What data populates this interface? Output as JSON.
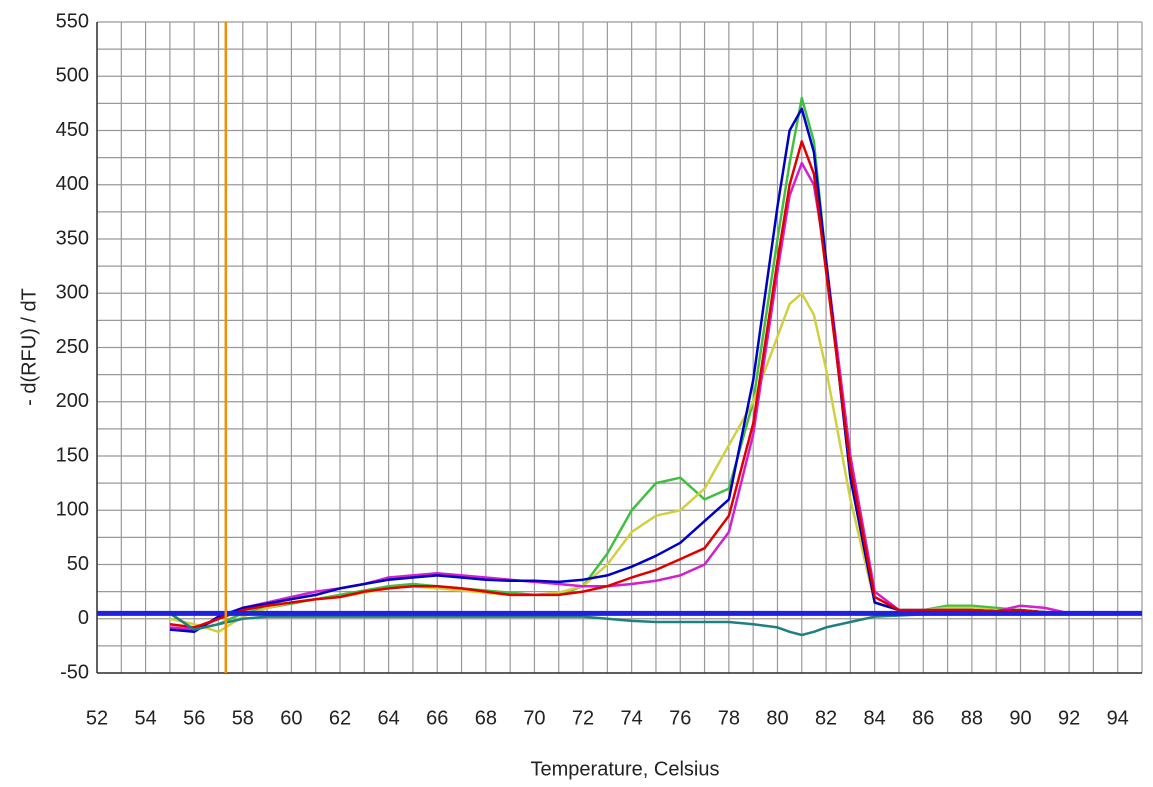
{
  "chart_data": {
    "type": "line",
    "xlabel": "Temperature, Celsius",
    "ylabel": "- d(RFU) / dT",
    "xlim": [
      52,
      95
    ],
    "ylim": [
      -50,
      550
    ],
    "xticks": [
      52,
      54,
      56,
      58,
      60,
      62,
      64,
      66,
      68,
      70,
      72,
      74,
      76,
      78,
      80,
      82,
      84,
      86,
      88,
      90,
      92,
      94
    ],
    "yticks": [
      -50,
      0,
      50,
      100,
      150,
      200,
      250,
      300,
      350,
      400,
      450,
      500,
      550
    ],
    "x_minor_ticks": [
      53,
      55,
      57,
      59,
      61,
      63,
      65,
      67,
      69,
      71,
      73,
      75,
      77,
      79,
      81,
      83,
      85,
      87,
      89,
      91,
      93,
      95
    ],
    "y_minor_ticks": [
      -25,
      25,
      75,
      125,
      175,
      225,
      275,
      325,
      375,
      425,
      475,
      525
    ],
    "grid": true,
    "vline": {
      "x": 57.3,
      "color": "#f0900a"
    },
    "hline": {
      "y": 5,
      "color": "#2020e0"
    },
    "x": [
      55,
      56,
      57,
      58,
      59,
      60,
      61,
      62,
      63,
      64,
      65,
      66,
      67,
      68,
      69,
      70,
      71,
      72,
      73,
      74,
      75,
      76,
      77,
      78,
      79,
      80,
      80.5,
      81,
      81.5,
      82,
      83,
      84,
      85,
      86,
      87,
      88,
      89,
      90,
      91,
      92,
      93,
      94
    ],
    "series": [
      {
        "color": "#40c040",
        "values": [
          5,
          -10,
          -5,
          5,
          10,
          14,
          18,
          22,
          26,
          30,
          32,
          30,
          28,
          26,
          24,
          22,
          22,
          30,
          60,
          100,
          125,
          130,
          110,
          120,
          200,
          350,
          420,
          480,
          440,
          330,
          130,
          15,
          8,
          8,
          12,
          12,
          10,
          8,
          6,
          5,
          5,
          5
        ]
      },
      {
        "color": "#d0d040",
        "values": [
          0,
          -5,
          -12,
          2,
          10,
          15,
          18,
          20,
          24,
          28,
          30,
          28,
          26,
          24,
          22,
          22,
          24,
          30,
          50,
          80,
          95,
          100,
          120,
          160,
          200,
          260,
          290,
          300,
          280,
          230,
          110,
          15,
          8,
          8,
          10,
          10,
          8,
          8,
          6,
          5,
          5,
          5
        ]
      },
      {
        "color": "#d020d0",
        "values": [
          -8,
          -10,
          0,
          10,
          15,
          20,
          25,
          28,
          32,
          38,
          40,
          42,
          40,
          38,
          36,
          34,
          32,
          30,
          30,
          32,
          35,
          40,
          50,
          80,
          170,
          320,
          390,
          420,
          400,
          330,
          150,
          25,
          8,
          8,
          8,
          8,
          7,
          12,
          10,
          5,
          5,
          5
        ]
      },
      {
        "color": "#0000c0",
        "values": [
          -10,
          -12,
          2,
          10,
          14,
          18,
          22,
          28,
          32,
          36,
          38,
          40,
          38,
          36,
          35,
          35,
          34,
          36,
          40,
          48,
          58,
          70,
          90,
          110,
          220,
          380,
          450,
          470,
          430,
          330,
          130,
          15,
          8,
          8,
          8,
          8,
          7,
          8,
          6,
          5,
          5,
          5
        ]
      },
      {
        "color": "#e00000",
        "values": [
          -5,
          -8,
          0,
          8,
          12,
          15,
          18,
          20,
          25,
          28,
          30,
          30,
          28,
          25,
          22,
          22,
          22,
          25,
          30,
          38,
          45,
          55,
          65,
          95,
          180,
          330,
          400,
          440,
          410,
          320,
          140,
          20,
          8,
          8,
          8,
          8,
          7,
          8,
          6,
          5,
          5,
          5
        ]
      },
      {
        "color": "#208080",
        "values": [
          5,
          -10,
          -5,
          0,
          2,
          2,
          2,
          2,
          2,
          2,
          2,
          2,
          2,
          2,
          2,
          2,
          2,
          2,
          0,
          -2,
          -3,
          -3,
          -3,
          -3,
          -5,
          -8,
          -12,
          -15,
          -12,
          -8,
          -3,
          2,
          3,
          4,
          4,
          4,
          4,
          4,
          4,
          4,
          4,
          4
        ]
      }
    ]
  }
}
